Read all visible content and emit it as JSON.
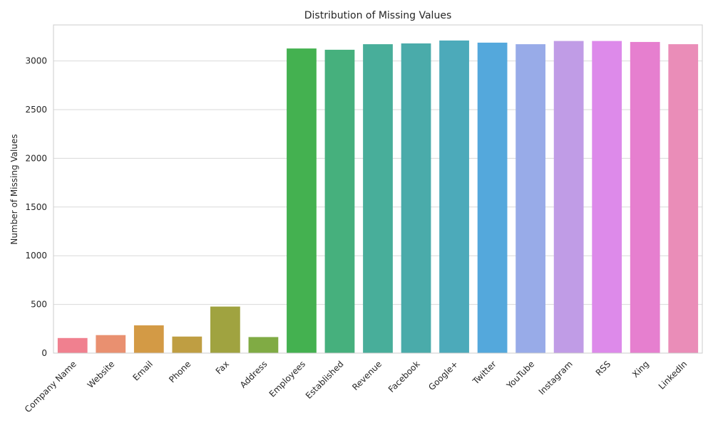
{
  "chart_data": {
    "type": "bar",
    "title": "Distribution of Missing Values",
    "xlabel": "",
    "ylabel": "Number of Missing Values",
    "categories": [
      "Company Name",
      "Website",
      "Email",
      "Phone",
      "Fax",
      "Address",
      "Employees",
      "Established",
      "Revenue",
      "Facebook",
      "Google+",
      "Twitter",
      "YouTube",
      "Instagram",
      "RSS",
      "Xing",
      "LinkedIn"
    ],
    "values": [
      155,
      185,
      285,
      170,
      478,
      165,
      3128,
      3115,
      3172,
      3180,
      3210,
      3188,
      3172,
      3205,
      3205,
      3195,
      3172
    ],
    "colors": [
      "#f0808f",
      "#e99070",
      "#d39a45",
      "#bf9e42",
      "#a0a340",
      "#80ab44",
      "#44b150",
      "#46b07d",
      "#48ae9a",
      "#4aabaa",
      "#4caaba",
      "#54a8dc",
      "#98abe8",
      "#c09ce6",
      "#dd8aea",
      "#e67fcf",
      "#ea8db8"
    ],
    "yticks": [
      0,
      500,
      1000,
      1500,
      2000,
      2500,
      3000
    ],
    "ylim": [
      0,
      3370
    ],
    "grid": true,
    "legend": "none"
  }
}
